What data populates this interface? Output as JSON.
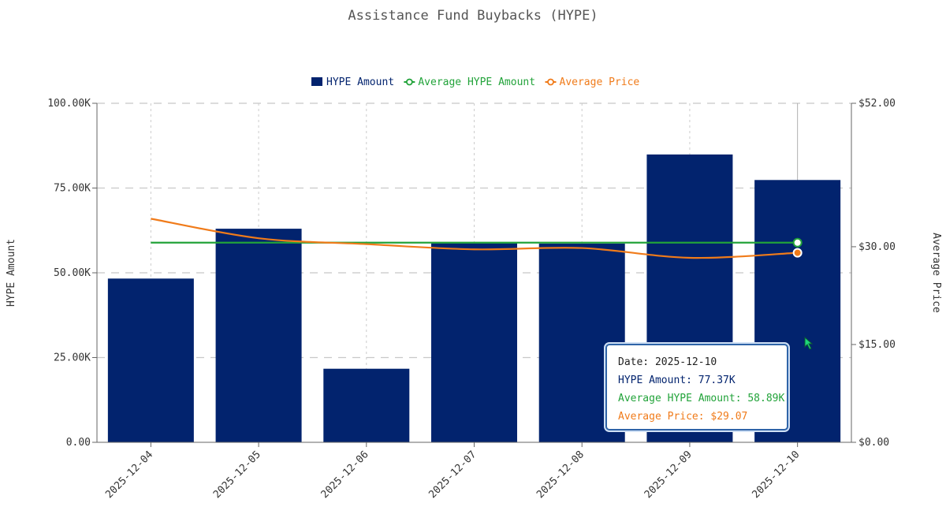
{
  "chart_data": {
    "type": "bar",
    "title": "Assistance Fund Buybacks (HYPE)",
    "categories": [
      "2025-12-04",
      "2025-12-05",
      "2025-12-06",
      "2025-12-07",
      "2025-12-08",
      "2025-12-09",
      "2025-12-10"
    ],
    "series": [
      {
        "name": "HYPE Amount",
        "type": "bar",
        "axis": "left",
        "color": "#02236e",
        "values": [
          48.3,
          63.0,
          21.7,
          58.7,
          58.6,
          84.9,
          77.37
        ]
      },
      {
        "name": "Average HYPE Amount",
        "type": "line",
        "axis": "left",
        "color": "#22a33a",
        "values": [
          58.89,
          58.89,
          58.89,
          58.89,
          58.89,
          58.89,
          58.89
        ]
      },
      {
        "name": "Average Price",
        "type": "line",
        "axis": "right",
        "color": "#f07b1a",
        "values": [
          34.3,
          31.3,
          30.4,
          29.6,
          29.8,
          28.3,
          29.07
        ]
      }
    ],
    "ylabel": "HYPE Amount",
    "ylim": [
      0,
      100
    ],
    "yticks": [
      "0.00",
      "25.00K",
      "50.00K",
      "75.00K",
      "100.00K"
    ],
    "y2label": "Average Price",
    "y2ticks": [
      {
        "value": 0,
        "label": "$0.00"
      },
      {
        "value": 15,
        "label": "$15.00"
      },
      {
        "value": 30,
        "label": "$30.00"
      },
      {
        "value": 52,
        "label": "$52.00"
      }
    ],
    "y2lim": [
      0,
      52
    ],
    "grid": true,
    "legend_position": "top-center",
    "tooltip": {
      "date_label": "Date: 2025-12-10",
      "hype_amount_label": "HYPE Amount: 77.37K",
      "avg_hype_label": "Average HYPE Amount: 58.89K",
      "avg_price_label": "Average Price: $29.07",
      "category_index": 6
    }
  }
}
